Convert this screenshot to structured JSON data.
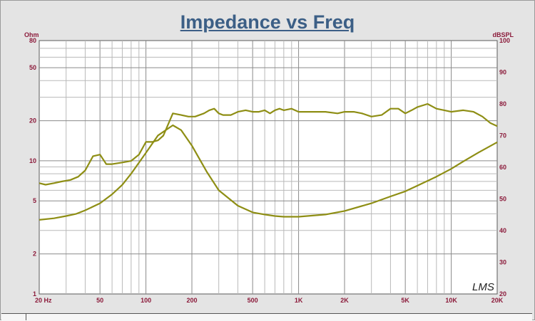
{
  "chart_data": {
    "type": "line",
    "title": "Impedance vs Freq",
    "left_axis_unit": "Ohm",
    "right_axis_unit": "dBSPL",
    "x_scale": "log",
    "y_left_scale": "log",
    "y_right_scale": "linear",
    "xlim": [
      20,
      20000
    ],
    "ylim_left": [
      1,
      80
    ],
    "ylim_right": [
      20,
      100
    ],
    "grid": true,
    "x_ticks": [
      {
        "value": 20,
        "label": "20  Hz"
      },
      {
        "value": 50,
        "label": "50"
      },
      {
        "value": 100,
        "label": "100"
      },
      {
        "value": 200,
        "label": "200"
      },
      {
        "value": 500,
        "label": "500"
      },
      {
        "value": 1000,
        "label": "1K"
      },
      {
        "value": 2000,
        "label": "2K"
      },
      {
        "value": 5000,
        "label": "5K"
      },
      {
        "value": 10000,
        "label": "10K"
      },
      {
        "value": 20000,
        "label": "20K"
      }
    ],
    "y_left_ticks": [
      {
        "value": 1,
        "label": "1"
      },
      {
        "value": 2,
        "label": "2"
      },
      {
        "value": 5,
        "label": "5"
      },
      {
        "value": 10,
        "label": "10"
      },
      {
        "value": 20,
        "label": "20"
      },
      {
        "value": 50,
        "label": "50"
      },
      {
        "value": 80,
        "label": "80"
      }
    ],
    "y_right_ticks": [
      {
        "value": 20,
        "label": "20"
      },
      {
        "value": 30,
        "label": "30"
      },
      {
        "value": 40,
        "label": "40"
      },
      {
        "value": 50,
        "label": "50"
      },
      {
        "value": 60,
        "label": "60"
      },
      {
        "value": 70,
        "label": "70"
      },
      {
        "value": 80,
        "label": "80"
      },
      {
        "value": 90,
        "label": "90"
      },
      {
        "value": 100,
        "label": "100"
      }
    ],
    "series": [
      {
        "axis": "left",
        "color": "#8e8e14",
        "x": [
          20,
          25,
          30,
          35,
          40,
          50,
          60,
          70,
          80,
          100,
          120,
          150,
          170,
          200,
          250,
          300,
          400,
          500,
          600,
          700,
          800,
          1000,
          1500,
          2000,
          3000,
          4000,
          5000,
          6000,
          8000,
          10000,
          12000,
          15000,
          20000
        ],
        "y": [
          3.6,
          3.7,
          3.85,
          4.0,
          4.25,
          4.8,
          5.6,
          6.6,
          8.0,
          11.5,
          15.5,
          18.5,
          17.0,
          13.0,
          8.3,
          6.0,
          4.6,
          4.1,
          3.95,
          3.85,
          3.8,
          3.8,
          3.95,
          4.2,
          4.8,
          5.4,
          5.9,
          6.5,
          7.6,
          8.7,
          9.9,
          11.5,
          13.8
        ]
      },
      {
        "axis": "right",
        "color": "#8e8e14",
        "x": [
          20,
          22,
          25,
          28,
          32,
          36,
          40,
          45,
          50,
          55,
          60,
          70,
          80,
          90,
          100,
          110,
          120,
          130,
          150,
          170,
          190,
          210,
          240,
          260,
          280,
          300,
          320,
          360,
          400,
          450,
          500,
          550,
          600,
          650,
          700,
          750,
          800,
          900,
          1000,
          1200,
          1500,
          1800,
          2000,
          2300,
          2600,
          3000,
          3500,
          4000,
          4500,
          5000,
          5500,
          6000,
          7000,
          8000,
          9000,
          10000,
          12000,
          14000,
          16000,
          18000,
          20000
        ],
        "y": [
          55,
          54.5,
          55,
          55.5,
          56,
          57,
          59,
          63.5,
          64,
          61,
          61,
          61.5,
          62,
          64,
          68,
          68,
          68.5,
          70,
          77,
          76.5,
          76,
          76,
          77,
          78,
          78.5,
          77,
          76.5,
          76.5,
          77.5,
          78,
          77.5,
          77.5,
          78,
          77,
          78,
          78.5,
          78,
          78.5,
          77.5,
          77.5,
          77.5,
          77,
          77.5,
          77.5,
          77,
          76,
          76.5,
          78.5,
          78.5,
          77,
          78,
          79,
          80,
          78.5,
          78,
          77.5,
          78,
          77.5,
          76,
          74,
          73
        ]
      }
    ],
    "annotation": "LMS"
  }
}
